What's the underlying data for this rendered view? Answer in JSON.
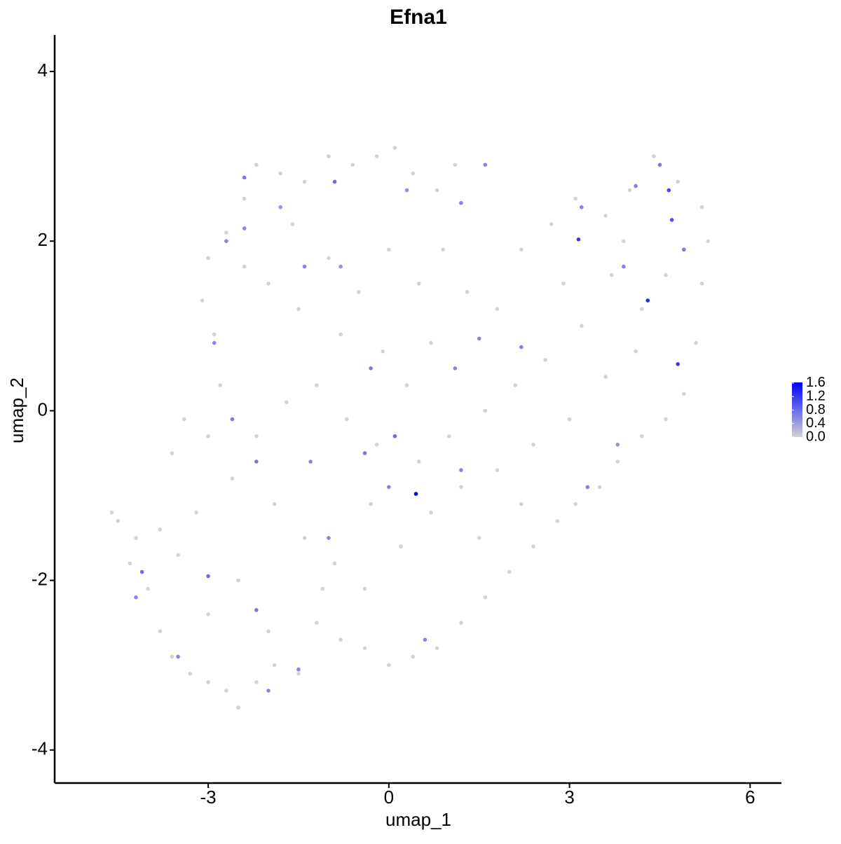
{
  "chart_data": {
    "type": "scatter",
    "title": "Efna1",
    "x_label": "umap_1",
    "y_label": "umap_2",
    "xlim": [
      -5.55,
      6.52
    ],
    "ylim": [
      -4.39,
      4.43
    ],
    "xticks": [
      -3,
      0,
      3,
      6
    ],
    "yticks": [
      -4,
      -2,
      0,
      2,
      4
    ],
    "color_low": "#d3d3d3",
    "color_high": "#0000ff",
    "clim": [
      0,
      1.62
    ],
    "cticks": [
      {
        "value": 0,
        "label": "0.0"
      },
      {
        "value": 0.4,
        "label": "0.4"
      },
      {
        "value": 0.8,
        "label": "0.8"
      },
      {
        "value": 1.2,
        "label": "1.2"
      },
      {
        "value": 1.6,
        "label": "1.6"
      }
    ],
    "x": [
      -4.6,
      -4.5,
      -4.2,
      -4.0,
      -3.8,
      -3.6,
      -3.3,
      -3.0,
      -2.7,
      -2.5,
      -2.2,
      -1.9,
      -1.5,
      -3.5,
      -3.2,
      -3.0,
      -3.4,
      -3.6,
      -2.8,
      -2.9,
      -3.1,
      -3.0,
      -2.7,
      -2.4,
      -2.2,
      -1.8,
      -1.4,
      -1.0,
      -0.6,
      -0.2,
      0.1,
      0.4,
      0.8,
      1.1,
      -2.0,
      -1.5,
      -1.0,
      -0.5,
      0.0,
      0.5,
      0.9,
      1.3,
      1.8,
      2.2,
      2.7,
      3.1,
      3.6,
      4.0,
      4.4,
      4.8,
      5.2,
      5.3,
      5.2,
      5.1,
      4.9,
      4.6,
      4.2,
      3.8,
      3.5,
      3.1,
      2.8,
      2.4,
      2.0,
      1.6,
      1.2,
      0.8,
      0.4,
      0.0,
      -0.4,
      -0.8,
      -1.2,
      4.2,
      3.7,
      3.2,
      2.6,
      2.1,
      1.6,
      1.0,
      0.5,
      -0.2,
      -0.7,
      -1.2,
      -1.7,
      -2.2,
      -2.6,
      -1.9,
      -1.4,
      -0.9,
      -0.4,
      0.2,
      0.7,
      1.2,
      1.8,
      2.4,
      3.0,
      3.6,
      4.1,
      4.6,
      3.9,
      2.9,
      -2.5,
      -3.0,
      -2.0,
      -1.1,
      -0.3,
      0.3,
      0.7,
      -0.1,
      -0.8,
      -1.6,
      -2.4,
      1.5,
      2.2,
      -3.8,
      -4.3,
      0.45,
      4.3,
      3.15,
      4.8,
      4.65,
      4.7,
      -0.9,
      -2.4,
      -1.4,
      -2.9,
      -2.6,
      -2.2,
      -1.3,
      -0.3,
      0.1,
      1.1,
      1.5,
      1.2,
      1.6,
      3.2,
      4.1,
      4.5,
      -3.0,
      -3.5,
      -2.2,
      -2.0,
      -1.5,
      0.6,
      -4.2,
      -4.1,
      -0.4,
      1.2,
      2.2,
      3.3,
      3.8,
      -2.4,
      -2.7,
      -1.8,
      0.3,
      -0.8,
      0.0,
      -1.0,
      4.9,
      3.9
    ],
    "y": [
      -1.2,
      -1.3,
      -1.5,
      -2.1,
      -2.6,
      -2.9,
      -3.1,
      -3.2,
      -3.3,
      -3.5,
      -3.2,
      -3.0,
      -3.1,
      -1.7,
      -1.2,
      -0.3,
      -0.1,
      -0.5,
      0.3,
      0.9,
      1.3,
      1.8,
      2.1,
      2.5,
      2.9,
      2.8,
      2.7,
      3.0,
      2.9,
      3.0,
      3.1,
      2.8,
      2.6,
      2.9,
      1.5,
      1.2,
      1.8,
      1.4,
      1.9,
      1.5,
      1.9,
      1.4,
      1.2,
      1.9,
      2.2,
      2.5,
      2.3,
      2.6,
      3.0,
      2.7,
      2.4,
      2.0,
      1.5,
      0.8,
      0.2,
      -0.1,
      -0.3,
      -0.6,
      -0.9,
      -1.1,
      -1.3,
      -1.6,
      -1.9,
      -2.2,
      -2.5,
      -2.8,
      -2.9,
      -3.0,
      -2.8,
      -2.7,
      -2.5,
      1.2,
      1.6,
      1.0,
      0.6,
      0.3,
      0.0,
      -0.3,
      -0.6,
      -0.4,
      -0.1,
      0.3,
      0.1,
      -0.3,
      -0.8,
      -1.1,
      -1.5,
      -1.8,
      -2.1,
      -1.6,
      -1.2,
      -0.9,
      -0.7,
      -0.4,
      -0.1,
      0.4,
      0.7,
      1.6,
      2.0,
      1.5,
      -2.0,
      -2.4,
      -2.6,
      -2.1,
      -1.1,
      0.3,
      0.8,
      0.7,
      0.9,
      2.2,
      1.7,
      -1.5,
      -1.1,
      -1.4,
      -1.8,
      -0.98,
      1.3,
      2.02,
      0.55,
      2.6,
      2.25,
      2.7,
      2.75,
      1.7,
      0.8,
      -0.1,
      -0.6,
      -0.6,
      0.5,
      -0.3,
      0.5,
      0.85,
      2.45,
      2.9,
      2.4,
      2.65,
      2.9,
      -1.95,
      -2.9,
      -2.35,
      -3.3,
      -3.05,
      -2.7,
      -2.2,
      -1.9,
      -0.5,
      -0.7,
      0.75,
      -0.9,
      -0.4,
      2.15,
      2.0,
      2.4,
      2.6,
      1.7,
      -0.9,
      -1.5,
      1.9,
      1.7
    ],
    "values": [
      0,
      0,
      0,
      0,
      0,
      0,
      0,
      0,
      0,
      0,
      0,
      0,
      0,
      0,
      0,
      0,
      0,
      0,
      0,
      0,
      0,
      0,
      0,
      0,
      0,
      0,
      0,
      0,
      0,
      0,
      0,
      0,
      0,
      0,
      0,
      0,
      0,
      0,
      0,
      0,
      0,
      0,
      0,
      0,
      0,
      0,
      0,
      0,
      0,
      0,
      0,
      0,
      0,
      0,
      0,
      0,
      0,
      0,
      0,
      0,
      0,
      0,
      0,
      0,
      0,
      0,
      0,
      0,
      0,
      0,
      0,
      0,
      0,
      0,
      0,
      0,
      0,
      0,
      0,
      0,
      0,
      0,
      0,
      0,
      0,
      0,
      0,
      0,
      0,
      0,
      0,
      0,
      0,
      0,
      0,
      0,
      0,
      0,
      0,
      0,
      0,
      0,
      0,
      0,
      0,
      0,
      0,
      0,
      0,
      0,
      0,
      0,
      0,
      0,
      0,
      1.6,
      1.3,
      1.2,
      1.2,
      1.1,
      1.0,
      0.8,
      0.7,
      0.6,
      0.6,
      0.7,
      0.7,
      0.6,
      0.7,
      0.8,
      0.6,
      0.6,
      0.6,
      0.6,
      0.6,
      0.6,
      0.7,
      0.8,
      0.6,
      0.7,
      0.6,
      0.6,
      0.6,
      0.6,
      0.8,
      0.7,
      0.6,
      0.6,
      0.6,
      0.5,
      0.6,
      0.6,
      0.5,
      0.5,
      0.5,
      0.6,
      0.6,
      0.7,
      0.6
    ]
  }
}
